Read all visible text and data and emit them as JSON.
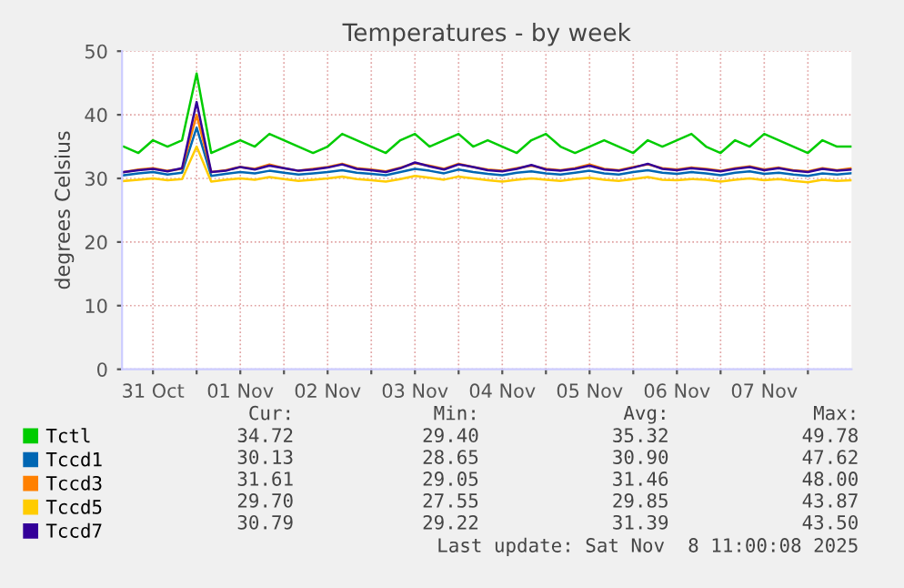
{
  "chart_data": {
    "type": "line",
    "title": "Temperatures - by week",
    "ylabel": "degrees Celsius",
    "x": [
      "2025-10-31T04:00",
      "2025-10-31T08:00",
      "2025-10-31T12:00",
      "2025-10-31T16:00",
      "2025-10-31T20:00",
      "2025-11-01T00:00",
      "2025-11-01T04:00",
      "2025-11-01T08:00",
      "2025-11-01T12:00",
      "2025-11-01T16:00",
      "2025-11-01T20:00",
      "2025-11-02T00:00",
      "2025-11-02T04:00",
      "2025-11-02T08:00",
      "2025-11-02T12:00",
      "2025-11-02T16:00",
      "2025-11-02T20:00",
      "2025-11-03T00:00",
      "2025-11-03T04:00",
      "2025-11-03T08:00",
      "2025-11-03T12:00",
      "2025-11-03T16:00",
      "2025-11-03T20:00",
      "2025-11-04T00:00",
      "2025-11-04T04:00",
      "2025-11-04T08:00",
      "2025-11-04T12:00",
      "2025-11-04T16:00",
      "2025-11-04T20:00",
      "2025-11-05T00:00",
      "2025-11-05T04:00",
      "2025-11-05T08:00",
      "2025-11-05T12:00",
      "2025-11-05T16:00",
      "2025-11-05T20:00",
      "2025-11-06T00:00",
      "2025-11-06T04:00",
      "2025-11-06T08:00",
      "2025-11-06T12:00",
      "2025-11-06T16:00",
      "2025-11-06T20:00",
      "2025-11-07T00:00",
      "2025-11-07T04:00",
      "2025-11-07T08:00",
      "2025-11-07T12:00",
      "2025-11-07T16:00",
      "2025-11-07T20:00",
      "2025-11-08T00:00",
      "2025-11-08T04:00",
      "2025-11-08T08:00",
      "2025-11-08T12:00"
    ],
    "series": [
      {
        "name": "Tctl",
        "color": "#00cc00",
        "values": [
          35,
          34,
          36,
          35,
          36,
          46.5,
          34,
          35,
          36,
          35,
          37,
          36,
          35,
          34,
          35,
          37,
          36,
          35,
          34,
          36,
          37,
          35,
          36,
          37,
          35,
          36,
          35,
          34,
          36,
          37,
          35,
          34,
          35,
          36,
          35,
          34,
          36,
          35,
          36,
          37,
          35,
          34,
          36,
          35,
          37,
          36,
          35,
          34,
          36,
          35,
          35
        ]
      },
      {
        "name": "Tccd1",
        "color": "#0066b3",
        "values": [
          30.5,
          30.8,
          31,
          30.6,
          30.9,
          38,
          30.4,
          30.7,
          31,
          30.8,
          31.2,
          30.9,
          30.6,
          30.8,
          31,
          31.3,
          30.9,
          30.7,
          30.5,
          31,
          31.5,
          31.2,
          30.8,
          31.4,
          31,
          30.7,
          30.5,
          30.9,
          31.1,
          30.8,
          30.6,
          30.9,
          31.2,
          30.8,
          30.6,
          31,
          31.3,
          30.9,
          30.7,
          31,
          30.8,
          30.5,
          30.9,
          31.1,
          30.7,
          30.9,
          30.6,
          30.4,
          30.8,
          30.6,
          30.8
        ]
      },
      {
        "name": "Tccd3",
        "color": "#ff8000",
        "values": [
          31,
          31.4,
          31.6,
          31.2,
          31.5,
          40,
          31,
          31.3,
          31.8,
          31.5,
          32.2,
          31.6,
          31.2,
          31.5,
          31.8,
          32.3,
          31.6,
          31.4,
          31.1,
          31.7,
          32.4,
          32,
          31.5,
          32.3,
          31.8,
          31.4,
          31.2,
          31.6,
          32,
          31.5,
          31.3,
          31.6,
          32.2,
          31.5,
          31.3,
          31.8,
          32.2,
          31.6,
          31.4,
          31.7,
          31.5,
          31.2,
          31.6,
          31.9,
          31.4,
          31.7,
          31.3,
          31.1,
          31.6,
          31.3,
          31.6
        ]
      },
      {
        "name": "Tccd5",
        "color": "#ffcc00",
        "values": [
          29.6,
          29.8,
          30,
          29.7,
          29.9,
          35,
          29.5,
          29.8,
          30,
          29.8,
          30.2,
          29.9,
          29.6,
          29.8,
          30,
          30.3,
          29.9,
          29.7,
          29.5,
          29.9,
          30.4,
          30.1,
          29.8,
          30.3,
          30,
          29.7,
          29.5,
          29.8,
          30,
          29.8,
          29.6,
          29.9,
          30.1,
          29.8,
          29.6,
          29.9,
          30.2,
          29.8,
          29.7,
          29.9,
          29.8,
          29.5,
          29.8,
          30,
          29.7,
          29.9,
          29.6,
          29.4,
          29.8,
          29.6,
          29.7
        ]
      },
      {
        "name": "Tccd7",
        "color": "#330099",
        "values": [
          31,
          31.3,
          31.5,
          31.1,
          31.6,
          42,
          31,
          31.2,
          31.8,
          31.4,
          32,
          31.6,
          31.2,
          31.4,
          31.7,
          32.2,
          31.5,
          31.3,
          31,
          31.6,
          32.5,
          31.9,
          31.4,
          32.2,
          31.8,
          31.3,
          31.1,
          31.5,
          32.1,
          31.4,
          31.2,
          31.5,
          32,
          31.4,
          31.2,
          31.7,
          32.3,
          31.5,
          31.3,
          31.6,
          31.4,
          31.1,
          31.5,
          31.8,
          31.3,
          31.6,
          31.2,
          31,
          31.5,
          31.2,
          31.4
        ]
      }
    ],
    "xlim": [
      "2025-10-31T03:30",
      "2025-11-08T12:00"
    ],
    "xticks": [
      {
        "value": "2025-10-31T12:00",
        "label": "31 Oct"
      },
      {
        "value": "2025-11-01T00:00",
        "label": null
      },
      {
        "value": "2025-11-01T12:00",
        "label": "01 Nov"
      },
      {
        "value": "2025-11-02T00:00",
        "label": null
      },
      {
        "value": "2025-11-02T12:00",
        "label": "02 Nov"
      },
      {
        "value": "2025-11-03T00:00",
        "label": null
      },
      {
        "value": "2025-11-03T12:00",
        "label": "03 Nov"
      },
      {
        "value": "2025-11-04T00:00",
        "label": null
      },
      {
        "value": "2025-11-04T12:00",
        "label": "04 Nov"
      },
      {
        "value": "2025-11-05T00:00",
        "label": null
      },
      {
        "value": "2025-11-05T12:00",
        "label": "05 Nov"
      },
      {
        "value": "2025-11-06T00:00",
        "label": null
      },
      {
        "value": "2025-11-06T12:00",
        "label": "06 Nov"
      },
      {
        "value": "2025-11-07T00:00",
        "label": null
      },
      {
        "value": "2025-11-07T12:00",
        "label": "07 Nov"
      },
      {
        "value": "2025-11-08T00:00",
        "label": null
      }
    ],
    "ylim": [
      0,
      50
    ],
    "yticks": [
      0,
      10,
      20,
      30,
      40,
      50
    ],
    "grid": true,
    "legend": "bottom",
    "marker": "none",
    "line_style": "solid",
    "annotations": [
      "Cur:",
      "Min:",
      "Avg:",
      "Max:",
      "34.72",
      "29.40",
      "35.32",
      "49.78",
      "30.13",
      "28.65",
      "30.90",
      "47.62",
      "31.61",
      "29.05",
      "31.46",
      "48.00",
      "29.70",
      "27.55",
      "29.85",
      "43.87",
      "30.79",
      "29.22",
      "31.39",
      "43.50",
      "Last update: Sat Nov  8 11:00:08 2025"
    ]
  }
}
